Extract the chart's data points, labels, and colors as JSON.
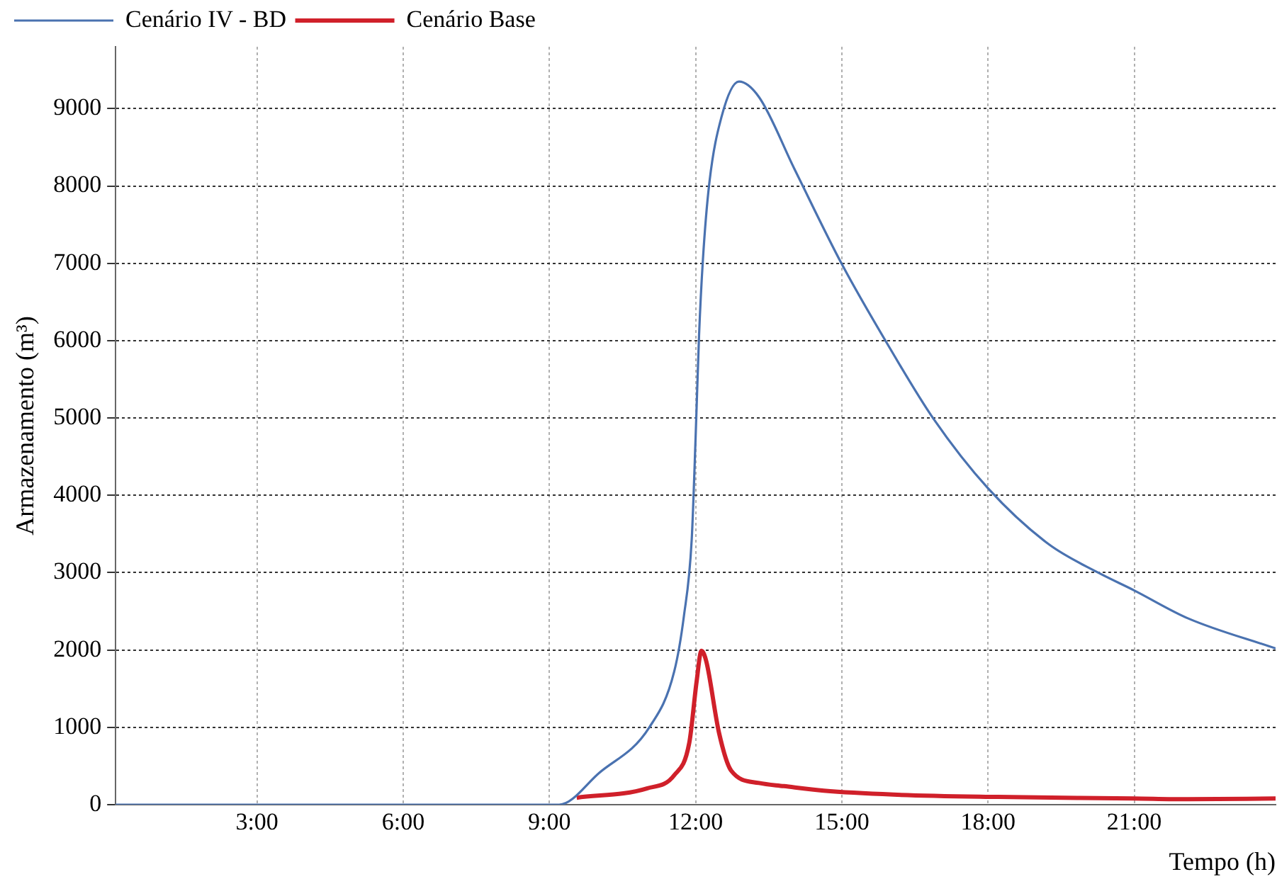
{
  "chart_data": {
    "type": "line",
    "xlabel": "Tempo (h)",
    "ylabel": "Armazenamento (m³)",
    "xlim": [
      0.1,
      23.9
    ],
    "xticks": [
      {
        "value": 3,
        "label": "3:00"
      },
      {
        "value": 6,
        "label": "6:00"
      },
      {
        "value": 9,
        "label": "9:00"
      },
      {
        "value": 12,
        "label": "12:00"
      },
      {
        "value": 15,
        "label": "15:00"
      },
      {
        "value": 18,
        "label": "18:00"
      },
      {
        "value": 21,
        "label": "21:00"
      }
    ],
    "ylim": [
      0,
      9800
    ],
    "yticks": [
      0,
      1000,
      2000,
      3000,
      4000,
      5000,
      6000,
      7000,
      8000,
      9000
    ],
    "grid": true,
    "legend": "top left",
    "marker": "none",
    "line_style": "solid",
    "series": [
      {
        "name": "Cenário IV - BD",
        "color": "#4a72b0",
        "x": [
          0.1,
          9.2,
          10.02,
          11.05,
          11.56,
          11.76,
          11.92,
          12.0,
          12.07,
          12.15,
          12.28,
          12.53,
          12.89,
          13.3,
          14.02,
          15.0,
          15.96,
          16.88,
          18.0,
          19.24,
          20.26,
          21.0,
          22.1,
          23.9
        ],
        "values": [
          0,
          0,
          410,
          1000,
          1720,
          2440,
          3430,
          4750,
          6060,
          7050,
          8030,
          8890,
          9350,
          9150,
          8230,
          6990,
          5930,
          4990,
          4090,
          3370,
          3000,
          2770,
          2410,
          2020
        ]
      },
      {
        "name": "Cenário Base",
        "color": "#d0202a",
        "x": [
          9.56,
          11.0,
          11.56,
          11.87,
          12.02,
          12.12,
          12.22,
          12.48,
          12.73,
          13.3,
          13.81,
          14.63,
          16.06,
          18.21,
          20.98,
          22.1,
          23.9
        ],
        "values": [
          90,
          210,
          380,
          800,
          1590,
          1990,
          1850,
          930,
          440,
          280,
          240,
          180,
          130,
          100,
          80,
          70,
          80
        ]
      }
    ]
  }
}
